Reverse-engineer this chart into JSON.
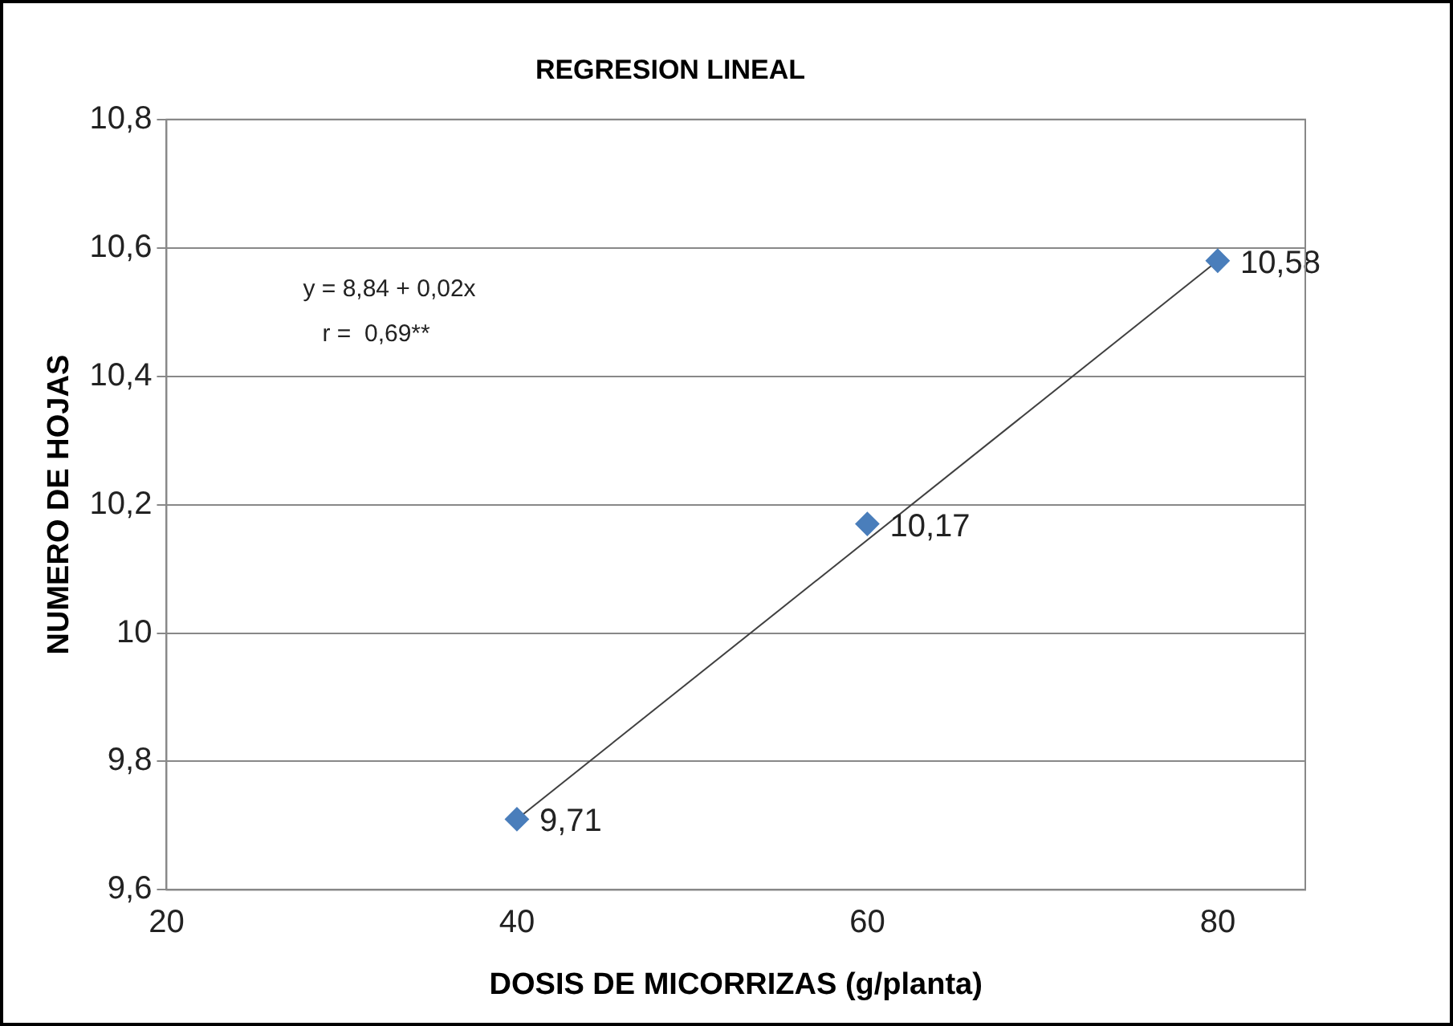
{
  "chart_data": {
    "type": "scatter",
    "title": "REGRESION LINEAL",
    "xlabel": "DOSIS DE MICORRIZAS (g/planta)",
    "ylabel": "NUMERO DE HOJAS",
    "xlim": [
      20,
      85
    ],
    "xticks": [
      20,
      40,
      60,
      80
    ],
    "ylim": [
      9.6,
      10.8
    ],
    "yticks": [
      {
        "value": 9.6,
        "label": "9,6"
      },
      {
        "value": 9.8,
        "label": "9,8"
      },
      {
        "value": 10,
        "label": "10"
      },
      {
        "value": 10.2,
        "label": "10,2"
      },
      {
        "value": 10.4,
        "label": "10,4"
      },
      {
        "value": 10.6,
        "label": "10,6"
      },
      {
        "value": 10.8,
        "label": "10,8"
      }
    ],
    "grid": "y",
    "legend": false,
    "marker": "diamond",
    "annotations": [
      "y = 8,84 + 0,02x",
      "r =  0,69**"
    ],
    "series": [
      {
        "type": "scatter",
        "color": "#4a7ebb",
        "x": [
          40,
          60,
          80
        ],
        "values": [
          9.71,
          10.17,
          10.58
        ],
        "value_labels": [
          "9,71",
          "10,17",
          "10,58"
        ]
      },
      {
        "type": "line",
        "color": "#404040",
        "marker": "none",
        "x": [
          40,
          80
        ],
        "values": [
          9.71,
          10.58
        ]
      }
    ]
  }
}
